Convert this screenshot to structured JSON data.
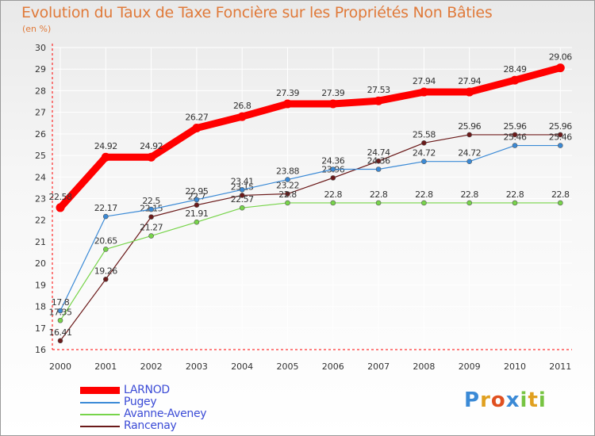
{
  "chart_data": {
    "type": "line",
    "title": "Evolution du Taux de Taxe Foncière sur les Propriétés Non Bâties",
    "subtitle": "(en %)",
    "x": [
      "2000",
      "2001",
      "2002",
      "2003",
      "2004",
      "2005",
      "2006",
      "2007",
      "2008",
      "2009",
      "2010",
      "2011"
    ],
    "ylim": [
      16,
      30
    ],
    "yticks": [
      16,
      17,
      18,
      19,
      20,
      21,
      22,
      23,
      24,
      25,
      26,
      27,
      28,
      29,
      30
    ],
    "grid": true,
    "legend_position": "bottom-left",
    "series": [
      {
        "name": "LARNOD",
        "color": "#ff0000",
        "labels": [
          "22.58",
          "24.92",
          "24.92",
          "26.27",
          "26.8",
          "27.39",
          "27.39",
          "27.53",
          "27.94",
          "27.94",
          "28.49",
          "29.06"
        ],
        "values": [
          22.58,
          24.92,
          24.92,
          26.27,
          26.8,
          27.39,
          27.39,
          27.53,
          27.94,
          27.94,
          28.49,
          29.06
        ]
      },
      {
        "name": "Pugey",
        "color": "#3b8ad6",
        "labels": [
          "17.8",
          "22.17",
          "22.5",
          "22.95",
          "23.41",
          "23.88",
          "24.36",
          "24.36",
          "24.72",
          "24.72",
          "25.46",
          "25.46"
        ],
        "values": [
          17.8,
          22.17,
          22.5,
          22.95,
          23.41,
          23.88,
          24.36,
          24.36,
          24.72,
          24.72,
          25.46,
          25.46
        ]
      },
      {
        "name": "Avanne-Aveney",
        "color": "#77d44a",
        "labels": [
          "17.35",
          "20.65",
          "21.27",
          "21.91",
          "22.57",
          "22.8",
          "22.8",
          "22.8",
          "22.8",
          "22.8",
          "22.8",
          "22.8"
        ],
        "values": [
          17.35,
          20.65,
          21.27,
          21.91,
          22.57,
          22.8,
          22.8,
          22.8,
          22.8,
          22.8,
          22.8,
          22.8
        ]
      },
      {
        "name": "Rancenay",
        "color": "#6b1a1a",
        "labels": [
          "16.41",
          "19.26",
          "22.15",
          "22.7",
          "23.15",
          "23.22",
          "23.96",
          "24.74",
          "25.58",
          "25.96",
          "25.96",
          "25.96"
        ],
        "values": [
          16.41,
          19.26,
          22.15,
          22.7,
          23.15,
          23.22,
          23.96,
          24.74,
          25.58,
          25.96,
          25.96,
          25.96
        ]
      }
    ]
  },
  "legend": {
    "items": [
      "LARNOD",
      "Pugey",
      "Avanne-Aveney",
      "Rancenay"
    ],
    "label_color": "#3b4bd6"
  },
  "logo": {
    "letters": [
      "P",
      "r",
      "o",
      "x",
      "i",
      "t",
      "i"
    ],
    "colors": [
      "#3b8ad6",
      "#e0a020",
      "#e05020",
      "#3b8ad6",
      "#77c442",
      "#e0a020",
      "#77c442"
    ]
  }
}
